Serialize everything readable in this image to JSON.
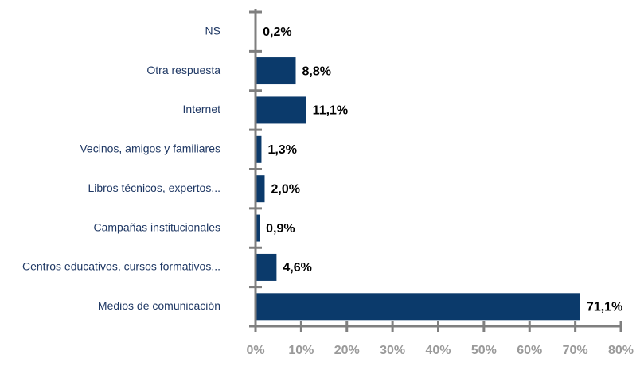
{
  "chart_data": {
    "type": "bar",
    "orientation": "horizontal",
    "categories": [
      "NS",
      "Otra respuesta",
      "Internet",
      "Vecinos, amigos y familiares",
      "Libros técnicos, expertos...",
      "Campañas institucionales",
      "Centros educativos, cursos formativos...",
      "Medios de comunicación"
    ],
    "values": [
      0.2,
      8.8,
      11.1,
      1.3,
      2.0,
      0.9,
      4.6,
      71.1
    ],
    "value_labels": [
      "0,2%",
      "8,8%",
      "11,1%",
      "1,3%",
      "2,0%",
      "0,9%",
      "4,6%",
      "71,1%"
    ],
    "color": "#0b3a6b",
    "xlim": [
      0,
      80
    ],
    "xticks": [
      {
        "value": 0,
        "label": "0%"
      },
      {
        "value": 10,
        "label": "10%"
      },
      {
        "value": 20,
        "label": "20%"
      },
      {
        "value": 30,
        "label": "30%"
      },
      {
        "value": 40,
        "label": "40%"
      },
      {
        "value": 50,
        "label": "50%"
      },
      {
        "value": 60,
        "label": "60%"
      },
      {
        "value": 70,
        "label": "70%"
      },
      {
        "value": 80,
        "label": "80%"
      }
    ],
    "grid": false
  }
}
